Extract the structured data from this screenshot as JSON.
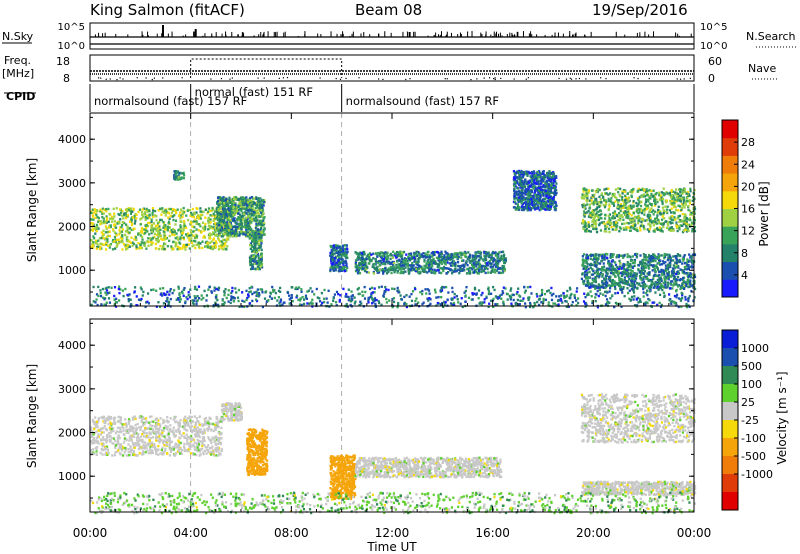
{
  "header": {
    "station": "King Salmon (fitACF)",
    "beam": "Beam 08",
    "date": "19/Sep/2016"
  },
  "strip": {
    "nsky_label": "N.Sky",
    "nsky_ticks": [
      "10^5",
      "10^0"
    ],
    "nsearch_label": "N.Search",
    "nsearch_ticks": [
      "10^5",
      "10^0"
    ],
    "freq_label": "Freq.",
    "freq_unit": "[MHz]",
    "freq_ticks": [
      "18",
      "8"
    ],
    "nave_label": "Nave",
    "nave_ticks": [
      "60",
      "0"
    ],
    "cpid_label": "CPID",
    "modes": [
      {
        "start": 0,
        "end": 4,
        "label": "normalsound (fast) 157 RF"
      },
      {
        "start": 4,
        "end": 10,
        "label": "normal (fast) 151 RF"
      },
      {
        "start": 10,
        "end": 24,
        "label": "normalsound (fast) 157 RF"
      }
    ]
  },
  "chart_data": [
    {
      "type": "heatmap",
      "quantity": "Power",
      "ylabel": "Slant Range [km]",
      "xlabel": "",
      "xlim": [
        0,
        24
      ],
      "ylim": [
        180,
        4600
      ],
      "yticks": [
        "1000",
        "2000",
        "3000",
        "4000"
      ],
      "colorbar_label": "Power [dB]",
      "colorbar_range": [
        0,
        32
      ],
      "colorbar_ticks": [
        "4",
        "8",
        "12",
        "16",
        "20",
        "24",
        "28"
      ],
      "colorscale": [
        "#1a1aff",
        "#1a4fb0",
        "#24826a",
        "#3aa35a",
        "#9fd143",
        "#f5d90a",
        "#f5a50a",
        "#f07d0a",
        "#e03c0a",
        "#e00000"
      ],
      "regions": [
        {
          "t0": 0.0,
          "t1": 5.5,
          "r0": 1500,
          "r1": 2450,
          "level": 14
        },
        {
          "t0": 5.0,
          "t1": 6.9,
          "r0": 1800,
          "r1": 2700,
          "level": 10
        },
        {
          "t0": 6.3,
          "t1": 6.8,
          "r0": 1050,
          "r1": 1900,
          "level": 10
        },
        {
          "t0": 3.3,
          "t1": 3.7,
          "r0": 3100,
          "r1": 3300,
          "level": 8
        },
        {
          "t0": 9.5,
          "t1": 10.2,
          "r0": 1000,
          "r1": 1600,
          "level": 7
        },
        {
          "t0": 10.5,
          "t1": 16.5,
          "r0": 950,
          "r1": 1450,
          "level": 8
        },
        {
          "t0": 16.8,
          "t1": 18.5,
          "r0": 2400,
          "r1": 3300,
          "level": 6
        },
        {
          "t0": 19.5,
          "t1": 24.0,
          "r0": 1900,
          "r1": 2900,
          "level": 12
        },
        {
          "t0": 19.5,
          "t1": 24.0,
          "r0": 600,
          "r1": 1400,
          "level": 8
        },
        {
          "t0": 0.0,
          "t1": 24.0,
          "r0": 180,
          "r1": 650,
          "level": 7
        }
      ]
    },
    {
      "type": "heatmap",
      "quantity": "Velocity",
      "ylabel": "Slant Range [km]",
      "xlabel": "Time UT",
      "xlim": [
        0,
        24
      ],
      "ylim": [
        180,
        4600
      ],
      "yticks": [
        "1000",
        "2000",
        "3000",
        "4000"
      ],
      "xticks": [
        "00:00",
        "04:00",
        "08:00",
        "12:00",
        "16:00",
        "20:00",
        "00:00"
      ],
      "xtick_hours": [
        0,
        4,
        8,
        12,
        16,
        20,
        24
      ],
      "colorbar_label": "Velocity [m s⁻¹]",
      "colorbar_ticks": [
        "1000",
        "500",
        "100",
        "25",
        "-25",
        "-100",
        "-500",
        "-1000"
      ],
      "colorbar_bins": [
        "#0a1ed8",
        "#1a4fb0",
        "#2f8a55",
        "#5fd12f",
        "#c8c8c8",
        "#f5d90a",
        "#f5a50a",
        "#f07d0a",
        "#e03c0a",
        "#e00000"
      ],
      "ground_scatter_color": "#c8c8c8",
      "regions": [
        {
          "t0": 0.0,
          "t1": 5.2,
          "r0": 1500,
          "r1": 2400,
          "vel": 0
        },
        {
          "t0": 5.2,
          "t1": 6.0,
          "r0": 2300,
          "r1": 2700,
          "vel": 0
        },
        {
          "t0": 6.2,
          "t1": 7.0,
          "r0": 1050,
          "r1": 2100,
          "vel": -300
        },
        {
          "t0": 9.5,
          "t1": 10.5,
          "r0": 500,
          "r1": 1500,
          "vel": -300
        },
        {
          "t0": 10.5,
          "t1": 16.3,
          "r0": 1000,
          "r1": 1450,
          "vel": 0
        },
        {
          "t0": 19.5,
          "t1": 24.0,
          "r0": 1800,
          "r1": 2900,
          "vel": 0
        },
        {
          "t0": 19.5,
          "t1": 24.0,
          "r0": 600,
          "r1": 900,
          "vel": 0
        },
        {
          "t0": 0.0,
          "t1": 24.0,
          "r0": 180,
          "r1": 650,
          "vel": 50
        }
      ]
    }
  ]
}
